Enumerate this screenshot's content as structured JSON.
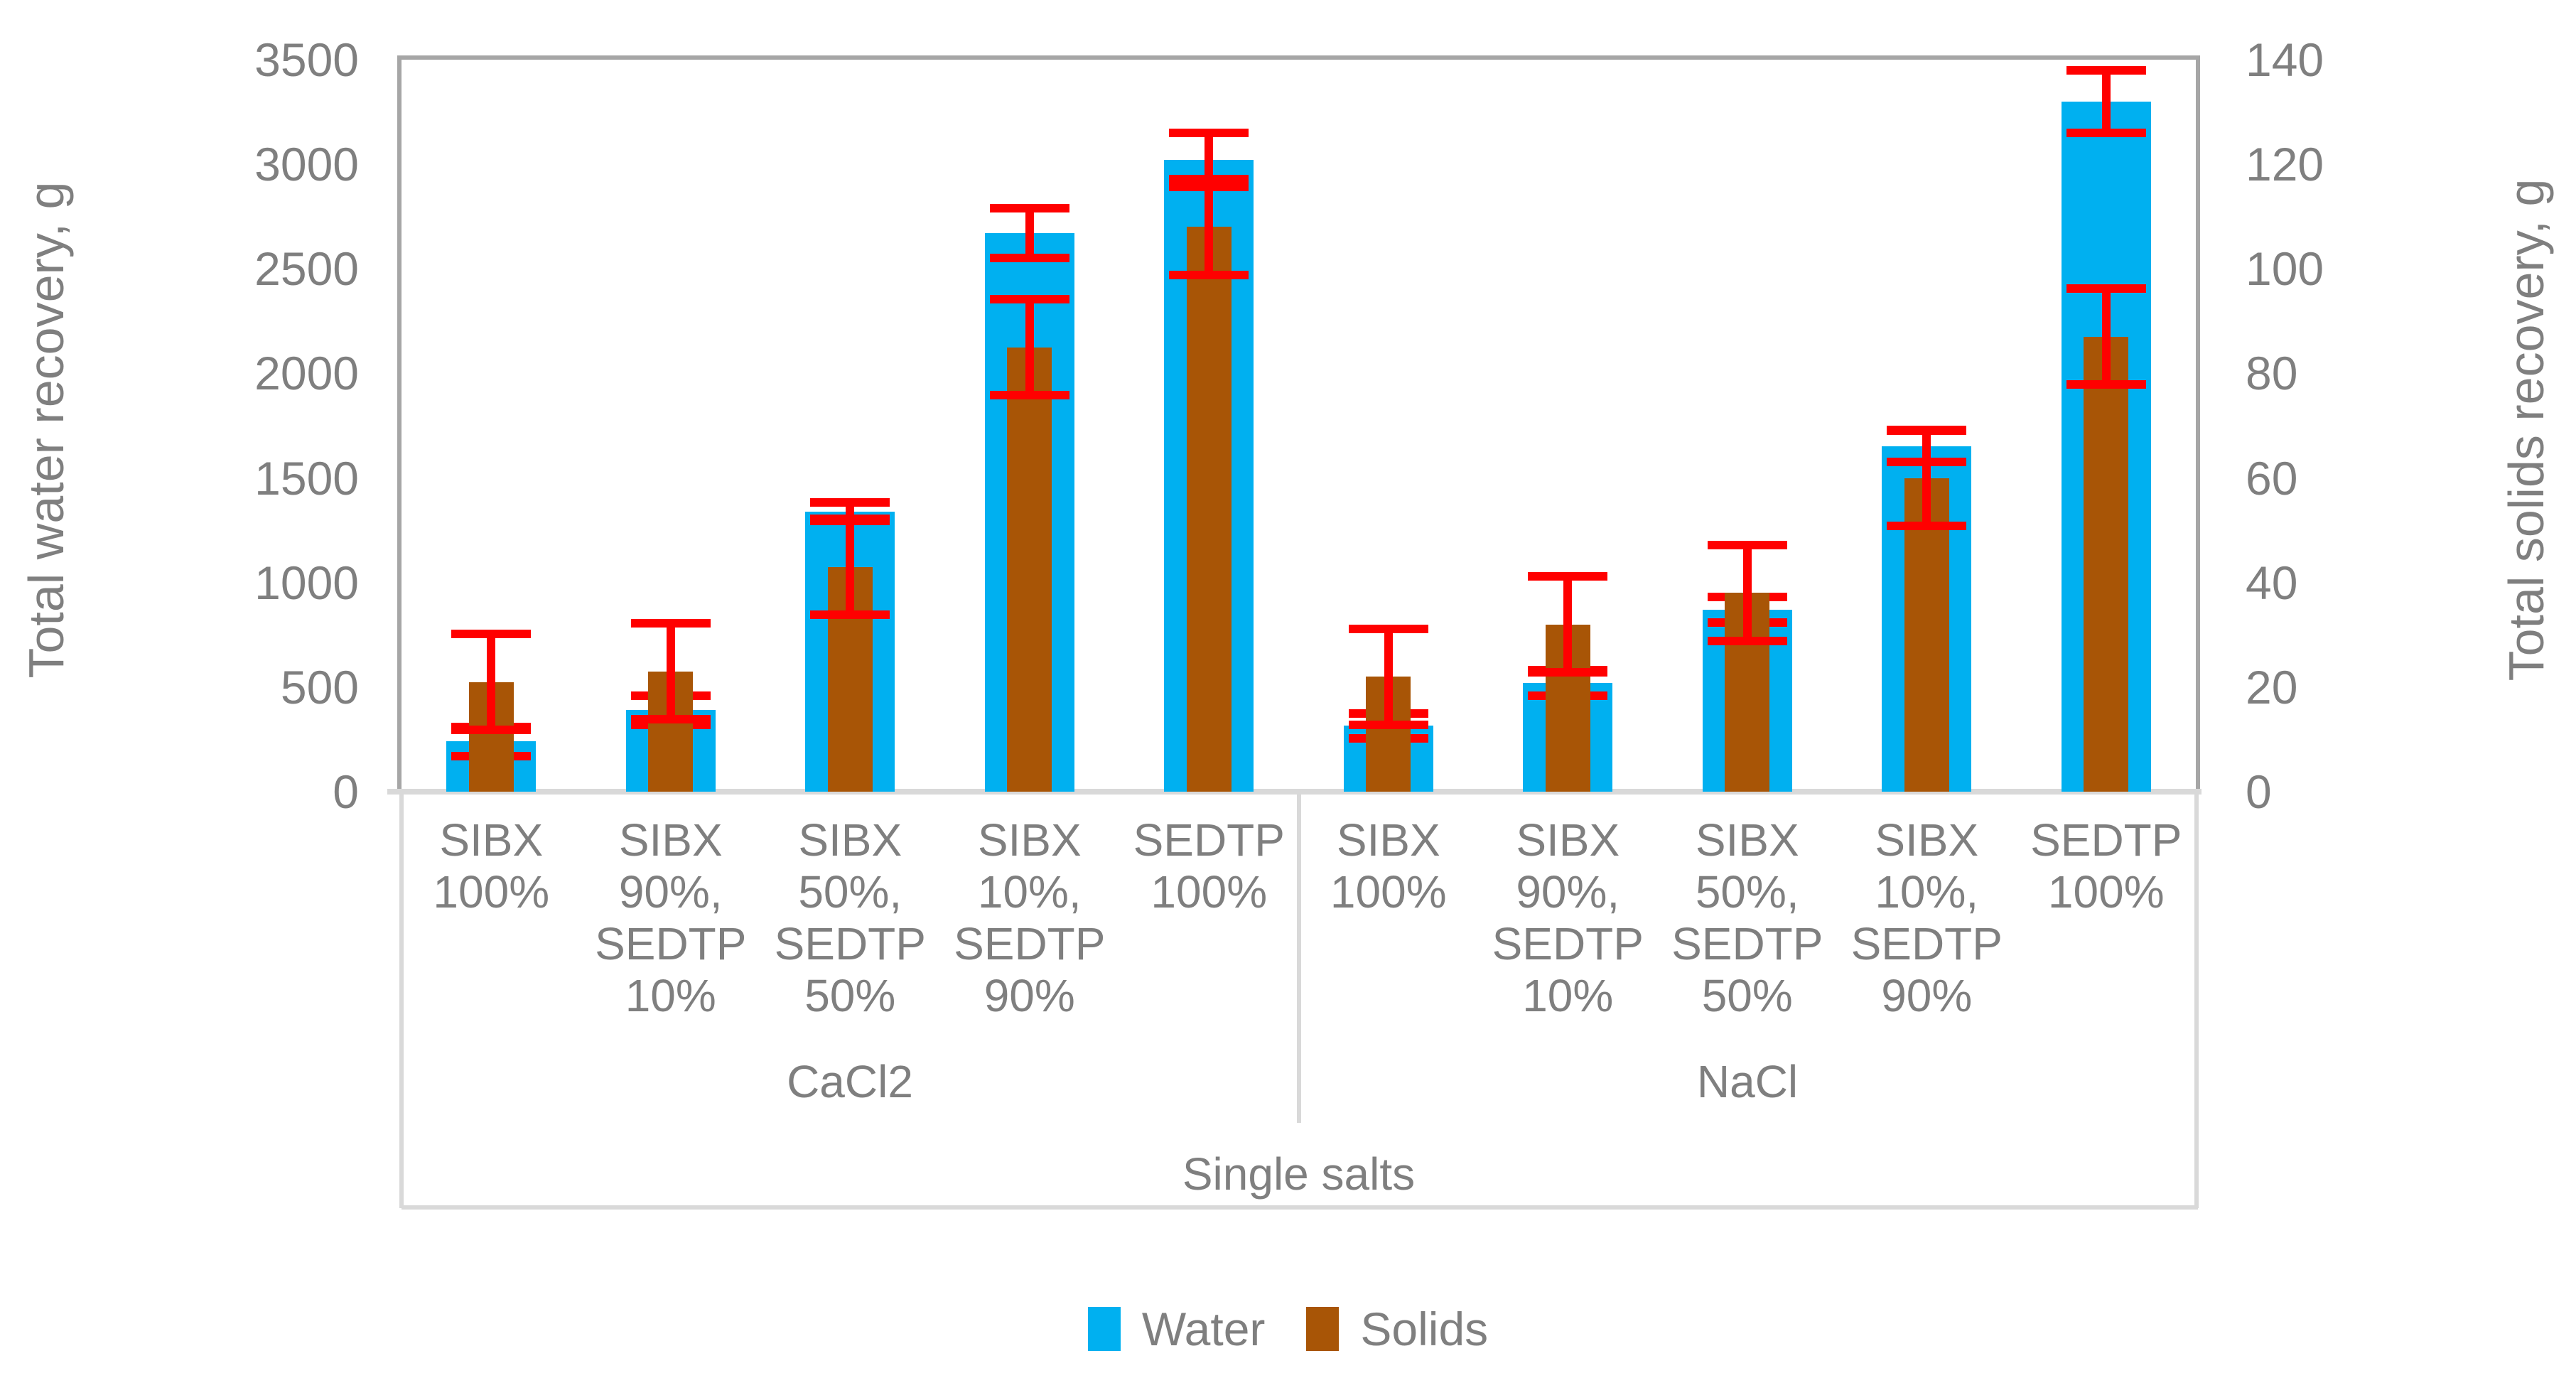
{
  "chart_data": {
    "type": "bar",
    "title": "",
    "axes": {
      "left": {
        "title": "Total water recovery, g",
        "min": 0,
        "max": 3500,
        "ticks": [
          0,
          500,
          1000,
          1500,
          2000,
          2500,
          3000,
          3500
        ]
      },
      "right": {
        "title": "Total solids recovery, g",
        "min": 0,
        "max": 140,
        "ticks": [
          0,
          20,
          40,
          60,
          80,
          100,
          120,
          140
        ]
      },
      "x": {
        "outer_label": "Single salts",
        "group_labels": [
          "CaCl2",
          "NaCl"
        ],
        "grid": "multi-level category axis, light gray separators"
      }
    },
    "series_info": [
      {
        "name": "Water",
        "axis": "left",
        "color": "#00B0F0"
      },
      {
        "name": "Solids",
        "axis": "right",
        "color": "#A85506"
      }
    ],
    "error_bar_color": "#FF0000",
    "groups": [
      {
        "label": "CaCl2",
        "categories": [
          {
            "label_lines": [
              "SIBX",
              "100%"
            ],
            "water": 240,
            "water_err": 90,
            "solids": 21,
            "solids_err": 10
          },
          {
            "label_lines": [
              "SIBX",
              "90%,",
              "SEDTP",
              "10%"
            ],
            "water": 390,
            "water_err": 90,
            "solids": 23,
            "solids_err": 10
          },
          {
            "label_lines": [
              "SIBX",
              "50%,",
              "SEDTP",
              "50%"
            ],
            "water": 1340,
            "water_err": 65,
            "solids": 43,
            "solids_err": 10
          },
          {
            "label_lines": [
              "SIBX",
              "10%,",
              "SEDTP",
              "90%"
            ],
            "water": 2670,
            "water_err": 140,
            "solids": 85,
            "solids_err": 10
          },
          {
            "label_lines": [
              "SEDTP",
              "100%"
            ],
            "water": 3020,
            "water_err": 150,
            "solids": 108,
            "solids_err": 10
          }
        ]
      },
      {
        "label": "NaCl",
        "categories": [
          {
            "label_lines": [
              "SIBX",
              "100%"
            ],
            "water": 315,
            "water_err": 80,
            "solids": 22,
            "solids_err": 10
          },
          {
            "label_lines": [
              "SIBX",
              "90%,",
              "SEDTP",
              "10%"
            ],
            "water": 520,
            "water_err": 80,
            "solids": 32,
            "solids_err": 10
          },
          {
            "label_lines": [
              "SIBX",
              "50%,",
              "SEDTP",
              "50%"
            ],
            "water": 870,
            "water_err": 80,
            "solids": 38,
            "solids_err": 10
          },
          {
            "label_lines": [
              "SIBX",
              "10%,",
              "SEDTP",
              "90%"
            ],
            "water": 1650,
            "water_err": 95,
            "solids": 60,
            "solids_err": 10
          },
          {
            "label_lines": [
              "SEDTP",
              "100%"
            ],
            "water": 3300,
            "water_err": 170,
            "solids": 87,
            "solids_err": 10
          }
        ]
      }
    ],
    "legend": [
      {
        "name": "Water",
        "color": "#00B0F0"
      },
      {
        "name": "Solids",
        "color": "#A85506"
      }
    ],
    "colors": {
      "water": "#00B0F0",
      "solids": "#A85506",
      "error": "#FF0000",
      "text": "#7F7F7F",
      "plot_border": "#A6A6A6",
      "table_lines": "#D9D9D9",
      "background": "#FFFFFF"
    },
    "layout_hints": {
      "legend_position": "bottom-center",
      "gridlines": false,
      "bars_overlapped": "Solids drawn narrower in front of Water"
    }
  }
}
